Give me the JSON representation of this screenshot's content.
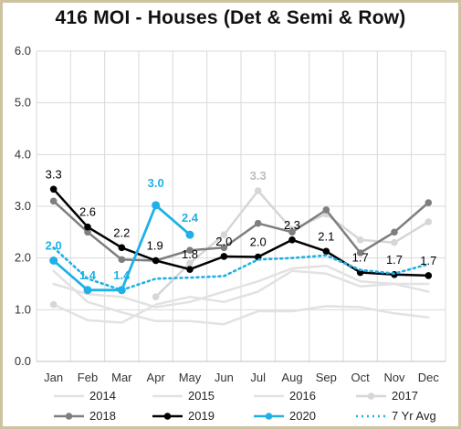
{
  "chart_data": {
    "type": "line",
    "title": "416 MOI - Houses (Det & Semi & Row)",
    "categories": [
      "Jan",
      "Feb",
      "Mar",
      "Apr",
      "May",
      "Jun",
      "Jul",
      "Aug",
      "Sep",
      "Oct",
      "Nov",
      "Dec"
    ],
    "ylim": [
      0,
      6
    ],
    "yticks": [
      "0.0",
      "1.0",
      "2.0",
      "3.0",
      "4.0",
      "5.0",
      "6.0"
    ],
    "grid": true,
    "legend_position": "bottom",
    "series": [
      {
        "name": "2014",
        "color": "#e2e2e2",
        "marker": false,
        "dashed": false,
        "width": 2.5,
        "values": [
          1.1,
          0.8,
          0.75,
          1.1,
          1.25,
          1.15,
          1.35,
          1.75,
          1.7,
          1.45,
          1.5,
          1.35
        ]
      },
      {
        "name": "2015",
        "color": "#e2e2e2",
        "marker": false,
        "dashed": false,
        "width": 2.5,
        "values": [
          1.75,
          1.15,
          0.95,
          0.78,
          0.78,
          0.72,
          0.97,
          0.97,
          1.07,
          1.05,
          0.93,
          0.85
        ]
      },
      {
        "name": "2016",
        "color": "#e2e2e2",
        "marker": false,
        "dashed": false,
        "width": 2.5,
        "values": [
          1.5,
          1.3,
          1.25,
          1.05,
          1.15,
          1.35,
          1.55,
          1.8,
          1.85,
          1.55,
          1.5,
          1.5
        ]
      },
      {
        "name": "2017",
        "color": "#d6d6d6",
        "marker": true,
        "dashed": false,
        "width": 2.5,
        "values": [
          1.1,
          null,
          null,
          1.25,
          1.9,
          2.45,
          3.3,
          2.55,
          2.85,
          2.35,
          2.3,
          2.7
        ],
        "labels": [
          null,
          null,
          null,
          null,
          null,
          null,
          "3.3",
          null,
          null,
          null,
          null,
          null
        ]
      },
      {
        "name": "2018",
        "color": "#7f7f7f",
        "marker": true,
        "dashed": false,
        "width": 2.5,
        "values": [
          3.1,
          2.5,
          1.97,
          1.95,
          2.15,
          2.2,
          2.67,
          2.5,
          2.93,
          2.1,
          2.5,
          3.07
        ]
      },
      {
        "name": "2019",
        "color": "#000000",
        "marker": true,
        "dashed": false,
        "width": 2.5,
        "values": [
          3.33,
          2.6,
          2.2,
          1.95,
          1.78,
          2.03,
          2.02,
          2.35,
          2.13,
          1.72,
          1.68,
          1.66
        ],
        "labels": [
          "3.3",
          "2.6",
          "2.2",
          "1.9",
          "1.8",
          "2.0",
          "2.0",
          "2.3",
          "2.1",
          "1.7",
          "1.7",
          "1.7"
        ]
      },
      {
        "name": "2020",
        "color": "#1fb1e6",
        "marker": true,
        "dashed": false,
        "width": 2.8,
        "values": [
          1.95,
          1.38,
          1.38,
          3.02,
          2.45,
          null,
          null,
          null,
          null,
          null,
          null,
          null
        ],
        "labels": [
          "2.0",
          "1.4",
          "1.4",
          "3.0",
          "2.4",
          null,
          null,
          null,
          null,
          null,
          null,
          null
        ]
      },
      {
        "name": "7 Yr Avg",
        "color": "#1fb1e6",
        "marker": false,
        "dashed": true,
        "width": 2.5,
        "values": [
          2.2,
          1.6,
          1.38,
          1.6,
          1.62,
          1.65,
          1.97,
          2.0,
          2.05,
          1.77,
          1.7,
          1.88
        ]
      }
    ]
  }
}
